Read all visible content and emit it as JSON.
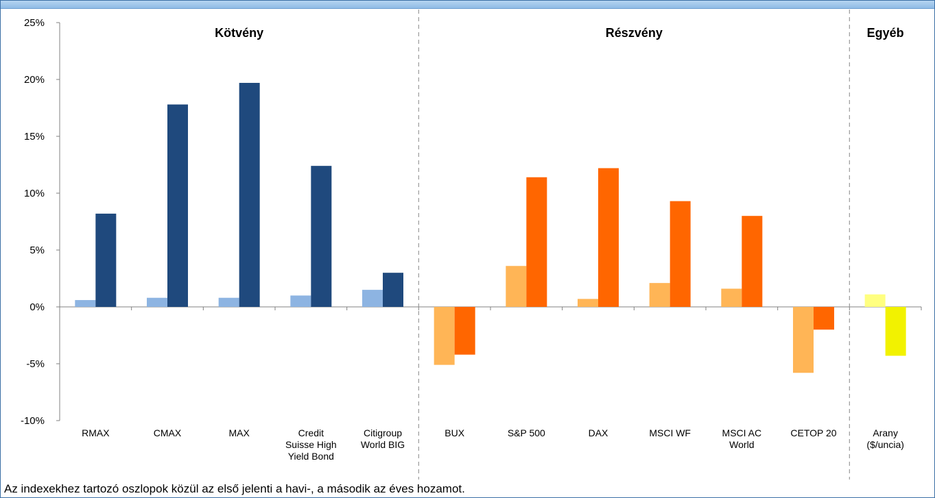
{
  "chart_data": {
    "type": "bar",
    "y_ticks": [
      "25%",
      "20%",
      "15%",
      "10%",
      "5%",
      "0%",
      "-5%",
      "-10%"
    ],
    "ylim": [
      -10,
      25
    ],
    "groups": [
      {
        "label": "Kötvény",
        "categories": [
          "RMAX",
          "CMAX",
          "MAX",
          "Credit Suisse High Yield Bond",
          "Citigroup World BIG"
        ]
      },
      {
        "label": "Részvény",
        "categories": [
          "BUX",
          "S&P 500",
          "DAX",
          "MSCI WF",
          "MSCI AC World",
          "CETOP 20"
        ]
      },
      {
        "label": "Egyéb",
        "categories": [
          "Arany ($/uncia)"
        ]
      }
    ],
    "category_labels": [
      [
        "RMAX"
      ],
      [
        "CMAX"
      ],
      [
        "MAX"
      ],
      [
        "Credit",
        "Suisse High",
        "Yield Bond"
      ],
      [
        "Citigroup",
        "World BIG"
      ],
      [
        "BUX"
      ],
      [
        "S&P 500"
      ],
      [
        "DAX"
      ],
      [
        "MSCI WF"
      ],
      [
        "MSCI AC",
        "World"
      ],
      [
        "CETOP 20"
      ],
      [
        "Arany",
        "($/uncia)"
      ]
    ],
    "series": [
      {
        "values": [
          0.6,
          0.8,
          0.8,
          1.0,
          1.5,
          -5.1,
          3.6,
          0.7,
          2.1,
          1.6,
          -5.8,
          1.1
        ]
      },
      {
        "values": [
          8.2,
          17.8,
          19.7,
          12.4,
          3.0,
          -4.2,
          11.4,
          12.2,
          9.3,
          8.0,
          -2.0,
          -4.3
        ]
      }
    ],
    "colors": {
      "bond_monthly": "#8db4e2",
      "bond_annual": "#1f497d",
      "equity_monthly": "#ffb556",
      "equity_annual": "#ff6600",
      "other_monthly": "#ffff80",
      "other_annual": "#f2f200",
      "axis": "#808080",
      "divider": "#999999"
    },
    "grid": false
  },
  "footnote": "Az indexekhez tartozó oszlopok közül az első jelenti a havi-, a második az éves hozamot."
}
